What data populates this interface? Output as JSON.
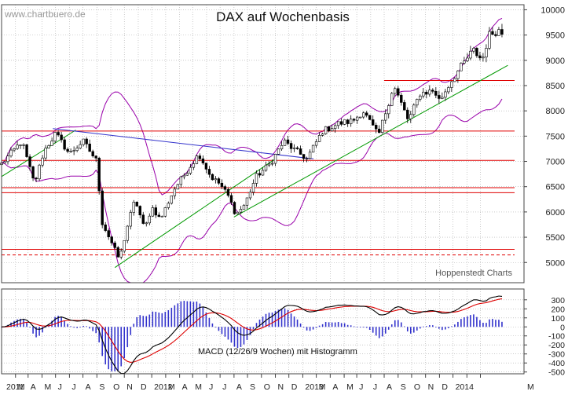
{
  "watermark": "www.chartbuero.de",
  "credit": "Hoppenstedt Charts",
  "colors": {
    "background": "#ffffff",
    "grid": "#aaaaaa",
    "candle_up": "#ffffff",
    "candle_down": "#000000",
    "support_resistance": "#e00000",
    "trend": "#009900",
    "downtrend": "#3333cc",
    "bollinger": "#9900aa",
    "macd_line": "#000000",
    "signal_line": "#dd0000",
    "histogram": "#3333cc",
    "text": "#222222",
    "watermark": "#999999"
  },
  "chart_data": [
    {
      "type": "candlestick",
      "title": "DAX auf Wochenbasis",
      "ylim": [
        4600,
        10100
      ],
      "y_ticks": [
        5000,
        5500,
        6000,
        6500,
        7000,
        7500,
        8000,
        8500,
        9000,
        9500,
        10000
      ],
      "y_tick_labels": [
        "5000",
        "5500",
        "6000",
        "6500",
        "7000",
        "7500",
        "8000",
        "8500",
        "9000",
        "9500",
        "10000"
      ],
      "x_start": "2011-01-01",
      "x_end": "2014-03-08",
      "grid": true,
      "price_anchors": [
        [
          "2011-01-01",
          6950
        ],
        [
          "2011-02-15",
          7400
        ],
        [
          "2011-03-15",
          6550
        ],
        [
          "2011-04-05",
          7200
        ],
        [
          "2011-05-01",
          7550
        ],
        [
          "2011-06-01",
          7150
        ],
        [
          "2011-07-01",
          7400
        ],
        [
          "2011-08-01",
          7000
        ],
        [
          "2011-08-12",
          5800
        ],
        [
          "2011-09-05",
          5350
        ],
        [
          "2011-09-20",
          5050
        ],
        [
          "2011-10-10",
          5800
        ],
        [
          "2011-10-25",
          6250
        ],
        [
          "2011-11-15",
          5650
        ],
        [
          "2011-12-01",
          6100
        ],
        [
          "2011-12-20",
          5850
        ],
        [
          "2012-01-20",
          6450
        ],
        [
          "2012-02-20",
          6850
        ],
        [
          "2012-03-15",
          7150
        ],
        [
          "2012-04-10",
          6700
        ],
        [
          "2012-05-01",
          6550
        ],
        [
          "2012-05-20",
          6300
        ],
        [
          "2012-06-05",
          5950
        ],
        [
          "2012-06-25",
          6150
        ],
        [
          "2012-07-20",
          6700
        ],
        [
          "2012-08-20",
          6950
        ],
        [
          "2012-09-20",
          7400
        ],
        [
          "2012-10-10",
          7250
        ],
        [
          "2012-11-10",
          7050
        ],
        [
          "2012-12-15",
          7600
        ],
        [
          "2013-01-20",
          7750
        ],
        [
          "2013-02-20",
          7800
        ],
        [
          "2013-03-15",
          8000
        ],
        [
          "2013-04-18",
          7500
        ],
        [
          "2013-05-22",
          8500
        ],
        [
          "2013-06-24",
          7800
        ],
        [
          "2013-07-20",
          8350
        ],
        [
          "2013-08-20",
          8400
        ],
        [
          "2013-09-01",
          8200
        ],
        [
          "2013-10-01",
          8650
        ],
        [
          "2013-11-15",
          9200
        ],
        [
          "2013-12-05",
          9000
        ],
        [
          "2013-12-20",
          9500
        ],
        [
          "2014-01-10",
          9600
        ],
        [
          "2014-01-22",
          9500
        ]
      ],
      "horizontal_lines": [
        {
          "value": 7600,
          "style": "solid"
        },
        {
          "value": 7020,
          "style": "solid"
        },
        {
          "value": 6480,
          "style": "solid"
        },
        {
          "value": 6380,
          "style": "solid"
        },
        {
          "value": 5260,
          "style": "solid"
        },
        {
          "value": 5150,
          "style": "dashed"
        },
        {
          "value": 8600,
          "style": "solid",
          "x_from": "2013-05-01"
        }
      ],
      "trend_lines": [
        {
          "color": "trend",
          "from": [
            "2011-01-01",
            6700
          ],
          "to": [
            "2011-06-15",
            7620
          ]
        },
        {
          "color": "trend",
          "from": [
            "2011-09-10",
            4900
          ],
          "to": [
            "2012-09-01",
            7050
          ]
        },
        {
          "color": "trend",
          "from": [
            "2012-06-01",
            5900
          ],
          "to": [
            "2014-01-31",
            8900
          ]
        },
        {
          "color": "downtrend",
          "from": [
            "2011-04-25",
            7650
          ],
          "to": [
            "2012-11-25",
            7050
          ]
        }
      ],
      "bollinger": {
        "period_weeks": 20,
        "multiplier": 2
      }
    },
    {
      "type": "line",
      "title": "MACD (12/26/9 Wochen) mit Histogramm",
      "ylim": [
        -520,
        420
      ],
      "y_ticks": [
        300,
        200,
        100,
        0,
        -100,
        -200,
        -300,
        -400,
        -500
      ],
      "y_tick_labels": [
        "300",
        "200",
        "100",
        "0",
        "-100",
        "-200",
        "-300",
        "-400",
        "-500"
      ],
      "series": [
        {
          "role": "macd_line",
          "ema_fast": 12,
          "ema_slow": 26
        },
        {
          "role": "signal_line",
          "ema_signal": 9
        },
        {
          "role": "histogram"
        }
      ]
    }
  ],
  "x_axis": {
    "labels": [
      "2011",
      "M",
      "A",
      "M",
      "J",
      "J",
      "A",
      "S",
      "O",
      "N",
      "D",
      "2012",
      "M",
      "A",
      "M",
      "J",
      "J",
      "A",
      "S",
      "O",
      "N",
      "D",
      "2013",
      "M",
      "A",
      "M",
      "J",
      "J",
      "A",
      "S",
      "O",
      "N",
      "D",
      "2014",
      "M"
    ],
    "dates": [
      "2011-02-01",
      "2011-03-01",
      "2011-04-01",
      "2011-05-01",
      "2011-06-01",
      "2011-07-01",
      "2011-08-01",
      "2011-09-01",
      "2011-10-01",
      "2011-11-01",
      "2011-12-01",
      "2012-01-01",
      "2012-02-01",
      "2012-03-01",
      "2012-04-01",
      "2012-05-01",
      "2012-06-01",
      "2012-07-01",
      "2012-08-01",
      "2012-09-01",
      "2012-10-01",
      "2012-11-01",
      "2012-12-01",
      "2013-01-01",
      "2013-02-01",
      "2013-03-01",
      "2013-04-01",
      "2013-05-01",
      "2013-06-01",
      "2013-07-01",
      "2013-08-01",
      "2013-09-01",
      "2013-10-01",
      "2013-11-01",
      "2013-12-01"
    ]
  }
}
